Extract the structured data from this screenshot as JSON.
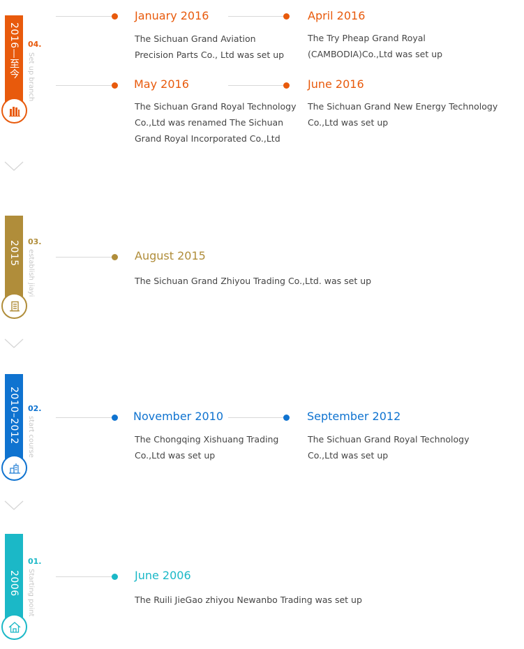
{
  "colors": {
    "s4": "#e85a0c",
    "s3": "#b08d3a",
    "s2": "#0f73d0",
    "s1": "#1bb8c7"
  },
  "sections": [
    {
      "period": "2016—至今",
      "number": "04.",
      "subtitle": "Set up branch",
      "icon": "office-buildings-icon",
      "events": [
        {
          "date": "January 2016",
          "text": "The Sichuan Grand Aviation Precision Parts Co., Ltd was set up"
        },
        {
          "date": "April 2016",
          "text": "The Try Pheap Grand Royal (CAMBODIA)Co.,Ltd was set up"
        },
        {
          "date": "May 2016",
          "text": "The Sichuan Grand Royal Technology Co.,Ltd was renamed The Sichuan Grand Royal Incorporated Co.,Ltd"
        },
        {
          "date": "June 2016",
          "text": "The Sichuan Grand New Energy Technology Co.,Ltd was set up"
        }
      ]
    },
    {
      "period": "2015",
      "number": "03.",
      "subtitle": "establish jiayi",
      "icon": "building-icon",
      "events": [
        {
          "date": "August 2015",
          "text": "The Sichuan Grand Zhiyou Trading Co.,Ltd. was set up"
        }
      ]
    },
    {
      "period": "2010–2012",
      "number": "02.",
      "subtitle": "start course",
      "icon": "city-icon",
      "events": [
        {
          "date": "November 2010",
          "text": "The Chongqing Xishuang Trading  Co.,Ltd was set up"
        },
        {
          "date": "September 2012",
          "text": "The Sichuan Grand Royal Technology Co.,Ltd was set up"
        }
      ]
    },
    {
      "period": "2006",
      "number": "01.",
      "subtitle": "Starting point",
      "icon": "home-icon",
      "events": [
        {
          "date": "June 2006",
          "text": "The Ruili JieGao zhiyou Newanbo Trading was set up"
        }
      ]
    }
  ]
}
